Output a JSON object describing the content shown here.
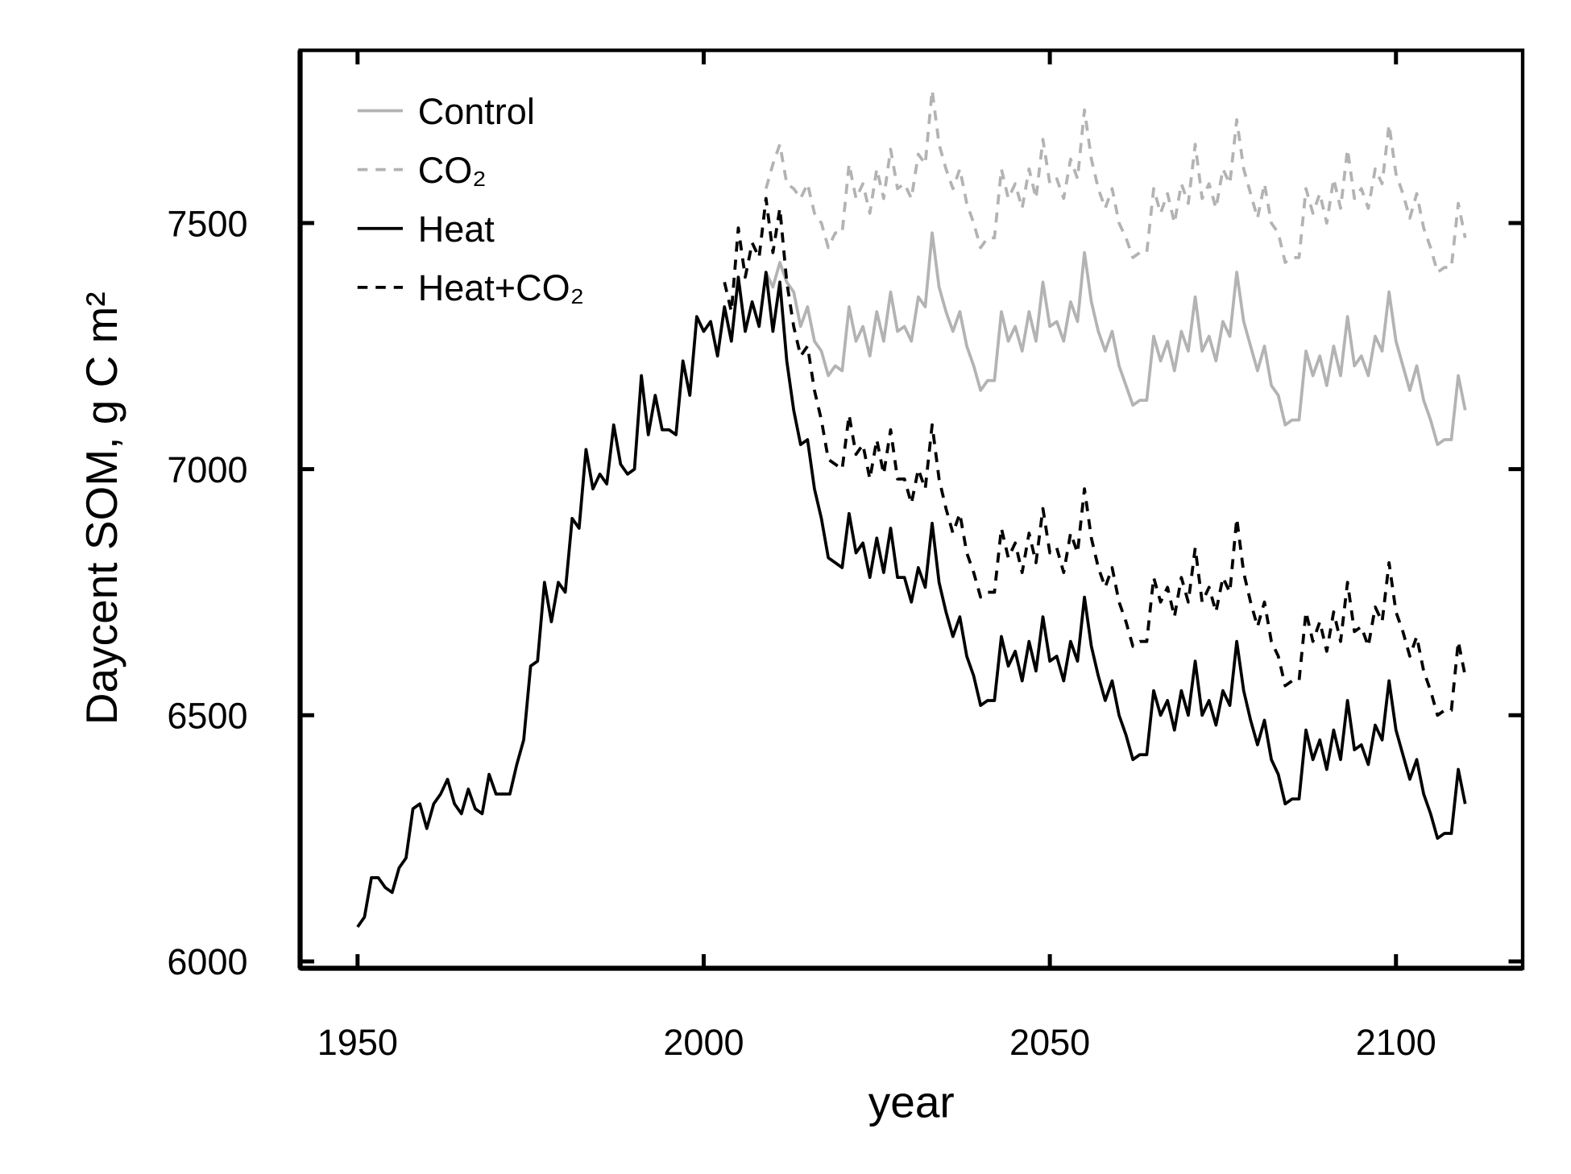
{
  "chart_data": {
    "type": "line",
    "xlabel": "year",
    "ylabel": "Daycent SOM, g C m²",
    "xlim": [
      1941.7,
      2118.3
    ],
    "ylim": [
      5986,
      7851
    ],
    "xticks": [
      1950,
      2000,
      2050,
      2100
    ],
    "yticks": [
      6000,
      6500,
      7000,
      7500
    ],
    "grid": false,
    "legend": "upper left",
    "x": [
      1950,
      1951,
      1952,
      1953,
      1954,
      1955,
      1956,
      1957,
      1958,
      1959,
      1960,
      1961,
      1962,
      1963,
      1964,
      1965,
      1966,
      1967,
      1968,
      1969,
      1970,
      1971,
      1972,
      1973,
      1974,
      1975,
      1976,
      1977,
      1978,
      1979,
      1980,
      1981,
      1982,
      1983,
      1984,
      1985,
      1986,
      1987,
      1988,
      1989,
      1990,
      1991,
      1992,
      1993,
      1994,
      1995,
      1996,
      1997,
      1998,
      1999,
      2000,
      2001,
      2002,
      2003,
      2004,
      2005,
      2006,
      2007,
      2008,
      2009,
      2010,
      2011,
      2012,
      2013,
      2014,
      2015,
      2016,
      2017,
      2018,
      2019,
      2020,
      2021,
      2022,
      2023,
      2024,
      2025,
      2026,
      2027,
      2028,
      2029,
      2030,
      2031,
      2032,
      2033,
      2034,
      2035,
      2036,
      2037,
      2038,
      2039,
      2040,
      2041,
      2042,
      2043,
      2044,
      2045,
      2046,
      2047,
      2048,
      2049,
      2050,
      2051,
      2052,
      2053,
      2054,
      2055,
      2056,
      2057,
      2058,
      2059,
      2060,
      2061,
      2062,
      2063,
      2064,
      2065,
      2066,
      2067,
      2068,
      2069,
      2070,
      2071,
      2072,
      2073,
      2074,
      2075,
      2076,
      2077,
      2078,
      2079,
      2080,
      2081,
      2082,
      2083,
      2084,
      2085,
      2086,
      2087,
      2088,
      2089,
      2090,
      2091,
      2092,
      2093,
      2094,
      2095,
      2096,
      2097,
      2098,
      2099,
      2100,
      2101,
      2102,
      2103,
      2104,
      2105,
      2106,
      2107,
      2108,
      2109,
      2110
    ],
    "series": [
      {
        "name": "Control",
        "color": "#b3b3b3",
        "dashed": false,
        "values": [
          null,
          null,
          null,
          null,
          null,
          null,
          null,
          null,
          null,
          null,
          null,
          null,
          null,
          null,
          null,
          null,
          null,
          null,
          null,
          null,
          null,
          null,
          null,
          null,
          null,
          null,
          null,
          null,
          null,
          null,
          null,
          null,
          null,
          null,
          null,
          null,
          null,
          null,
          null,
          null,
          null,
          null,
          null,
          null,
          null,
          null,
          null,
          null,
          null,
          null,
          null,
          null,
          null,
          null,
          null,
          null,
          null,
          null,
          null,
          7400,
          7370,
          7420,
          7380,
          7360,
          7290,
          7330,
          7260,
          7240,
          7190,
          7210,
          7200,
          7330,
          7260,
          7290,
          7230,
          7320,
          7260,
          7360,
          7280,
          7290,
          7260,
          7350,
          7330,
          7480,
          7370,
          7320,
          7280,
          7320,
          7250,
          7210,
          7160,
          7180,
          7180,
          7320,
          7260,
          7290,
          7240,
          7320,
          7260,
          7380,
          7290,
          7300,
          7260,
          7340,
          7300,
          7440,
          7340,
          7280,
          7240,
          7280,
          7210,
          7170,
          7130,
          7140,
          7140,
          7270,
          7220,
          7260,
          7200,
          7280,
          7240,
          7350,
          7240,
          7270,
          7220,
          7300,
          7270,
          7400,
          7300,
          7250,
          7200,
          7250,
          7170,
          7150,
          7090,
          7100,
          7100,
          7240,
          7190,
          7230,
          7170,
          7250,
          7190,
          7310,
          7210,
          7230,
          7190,
          7270,
          7240,
          7360,
          7260,
          7210,
          7160,
          7210,
          7140,
          7100,
          7050,
          7060,
          7060,
          7190,
          7120
        ]
      },
      {
        "name": "CO₂",
        "color": "#b3b3b3",
        "dashed": true,
        "values": [
          null,
          null,
          null,
          null,
          null,
          null,
          null,
          null,
          null,
          null,
          null,
          null,
          null,
          null,
          null,
          null,
          null,
          null,
          null,
          null,
          null,
          null,
          null,
          null,
          null,
          null,
          null,
          null,
          null,
          null,
          null,
          null,
          null,
          null,
          null,
          null,
          null,
          null,
          null,
          null,
          null,
          null,
          null,
          null,
          null,
          null,
          null,
          null,
          null,
          null,
          null,
          null,
          null,
          null,
          null,
          null,
          null,
          null,
          null,
          7570,
          7620,
          7660,
          7580,
          7570,
          7550,
          7580,
          7520,
          7500,
          7450,
          7480,
          7480,
          7620,
          7550,
          7580,
          7520,
          7610,
          7550,
          7650,
          7570,
          7580,
          7550,
          7640,
          7620,
          7770,
          7660,
          7610,
          7570,
          7610,
          7540,
          7500,
          7450,
          7470,
          7470,
          7610,
          7550,
          7580,
          7530,
          7610,
          7550,
          7670,
          7580,
          7590,
          7550,
          7630,
          7590,
          7730,
          7630,
          7570,
          7530,
          7570,
          7500,
          7470,
          7430,
          7440,
          7440,
          7570,
          7520,
          7560,
          7500,
          7580,
          7540,
          7660,
          7550,
          7580,
          7530,
          7610,
          7580,
          7710,
          7610,
          7560,
          7510,
          7580,
          7500,
          7480,
          7420,
          7430,
          7430,
          7570,
          7520,
          7560,
          7500,
          7590,
          7530,
          7650,
          7550,
          7570,
          7530,
          7610,
          7580,
          7700,
          7600,
          7560,
          7510,
          7560,
          7490,
          7450,
          7400,
          7410,
          7410,
          7540,
          7470
        ]
      },
      {
        "name": "Heat",
        "color": "#000000",
        "dashed": false,
        "values": [
          6070,
          6090,
          6170,
          6170,
          6150,
          6140,
          6190,
          6210,
          6310,
          6320,
          6270,
          6320,
          6340,
          6370,
          6320,
          6300,
          6350,
          6310,
          6300,
          6380,
          6340,
          6340,
          6340,
          6400,
          6450,
          6600,
          6610,
          6770,
          6690,
          6770,
          6750,
          6900,
          6880,
          7040,
          6960,
          6990,
          6970,
          7090,
          7010,
          6990,
          7000,
          7190,
          7070,
          7150,
          7080,
          7080,
          7070,
          7220,
          7150,
          7310,
          7280,
          7300,
          7230,
          7330,
          7260,
          7390,
          7280,
          7340,
          7290,
          7400,
          7280,
          7380,
          7220,
          7120,
          7050,
          7060,
          6960,
          6900,
          6820,
          6810,
          6800,
          6910,
          6830,
          6850,
          6780,
          6860,
          6790,
          6880,
          6780,
          6780,
          6730,
          6800,
          6760,
          6890,
          6770,
          6710,
          6660,
          6700,
          6620,
          6580,
          6520,
          6530,
          6530,
          6660,
          6600,
          6630,
          6570,
          6650,
          6590,
          6700,
          6610,
          6620,
          6570,
          6650,
          6610,
          6740,
          6640,
          6580,
          6530,
          6570,
          6500,
          6460,
          6410,
          6420,
          6420,
          6550,
          6500,
          6530,
          6470,
          6550,
          6500,
          6610,
          6500,
          6530,
          6480,
          6550,
          6520,
          6650,
          6550,
          6490,
          6440,
          6490,
          6410,
          6380,
          6320,
          6330,
          6330,
          6470,
          6410,
          6450,
          6390,
          6470,
          6410,
          6530,
          6430,
          6440,
          6400,
          6480,
          6450,
          6570,
          6470,
          6420,
          6370,
          6410,
          6340,
          6300,
          6250,
          6260,
          6260,
          6390,
          6320
        ]
      },
      {
        "name": "Heat+CO₂",
        "color": "#000000",
        "dashed": true,
        "values": [
          null,
          null,
          null,
          null,
          null,
          null,
          null,
          null,
          null,
          null,
          null,
          null,
          null,
          null,
          null,
          null,
          null,
          null,
          null,
          null,
          null,
          null,
          null,
          null,
          null,
          null,
          null,
          null,
          null,
          null,
          null,
          null,
          null,
          null,
          null,
          null,
          null,
          null,
          null,
          null,
          null,
          null,
          null,
          null,
          null,
          null,
          null,
          null,
          null,
          null,
          null,
          null,
          null,
          7380,
          7320,
          7490,
          7390,
          7460,
          7430,
          7550,
          7440,
          7530,
          7380,
          7290,
          7230,
          7250,
          7160,
          7100,
          7020,
          7010,
          7000,
          7110,
          7030,
          7050,
          6980,
          7060,
          6990,
          7080,
          6980,
          6980,
          6930,
          7000,
          6960,
          7090,
          6980,
          6920,
          6870,
          6910,
          6830,
          6790,
          6740,
          6750,
          6750,
          6880,
          6820,
          6850,
          6790,
          6870,
          6810,
          6920,
          6830,
          6840,
          6790,
          6870,
          6830,
          6960,
          6860,
          6800,
          6760,
          6800,
          6730,
          6690,
          6640,
          6650,
          6650,
          6780,
          6730,
          6760,
          6700,
          6780,
          6730,
          6840,
          6730,
          6760,
          6710,
          6780,
          6750,
          6900,
          6790,
          6730,
          6680,
          6730,
          6650,
          6620,
          6560,
          6570,
          6570,
          6710,
          6650,
          6690,
          6630,
          6710,
          6650,
          6770,
          6670,
          6680,
          6640,
          6720,
          6690,
          6810,
          6710,
          6670,
          6620,
          6660,
          6590,
          6550,
          6500,
          6510,
          6510,
          6650,
          6580
        ]
      }
    ]
  }
}
